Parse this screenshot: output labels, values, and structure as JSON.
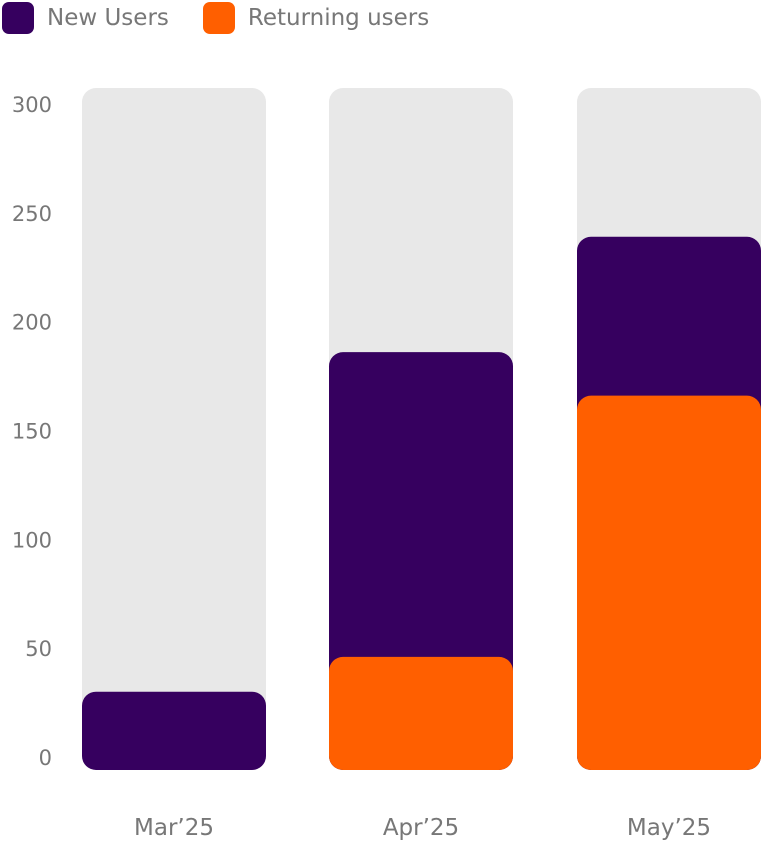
{
  "chart_data": {
    "type": "bar",
    "title": "",
    "xlabel": "",
    "ylabel": "",
    "categories": [
      "Mar’25",
      "Apr’25",
      "May’25"
    ],
    "series": [
      {
        "name": "New Users",
        "color": "#36005f",
        "values": [
          30,
          186,
          239
        ]
      },
      {
        "name": "Returning users",
        "color": "#ff5f00",
        "values": [
          0,
          46,
          166
        ]
      }
    ],
    "ylim": [
      0,
      300
    ],
    "yticks": [
      "0",
      "50",
      "100",
      "150",
      "200",
      "250",
      "300"
    ],
    "background_color": "#e8e8e8",
    "legend": "top-left",
    "grid": false
  }
}
